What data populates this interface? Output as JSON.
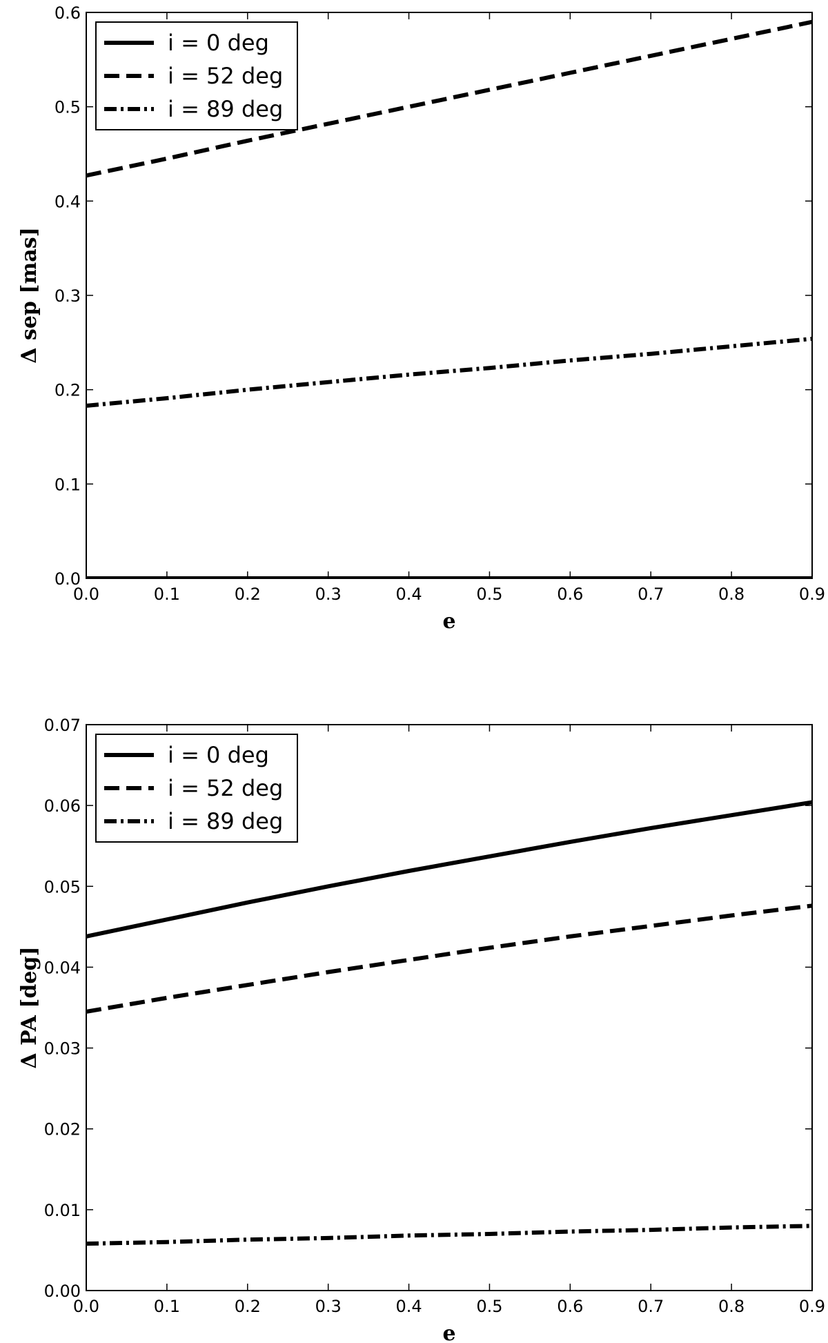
{
  "chart_data": [
    {
      "type": "line",
      "title": "",
      "xlabel": "e",
      "ylabel": "Δ sep [mas]",
      "xlim": [
        0.0,
        0.9
      ],
      "ylim": [
        0.0,
        0.6
      ],
      "xticks": [
        "0.0",
        "0.1",
        "0.2",
        "0.3",
        "0.4",
        "0.5",
        "0.6",
        "0.7",
        "0.8",
        "0.9"
      ],
      "yticks": [
        "0.0",
        "0.1",
        "0.2",
        "0.3",
        "0.4",
        "0.5",
        "0.6"
      ],
      "legend_position": "top-left",
      "grid": false,
      "series": [
        {
          "name": "i = 0 deg",
          "style": "solid",
          "x": [
            0.0,
            0.9
          ],
          "y": [
            0.0,
            0.0
          ]
        },
        {
          "name": "i = 52 deg",
          "style": "dashed",
          "x": [
            0.0,
            0.1,
            0.2,
            0.3,
            0.4,
            0.5,
            0.6,
            0.7,
            0.8,
            0.9
          ],
          "y": [
            0.427,
            0.445,
            0.464,
            0.482,
            0.5,
            0.518,
            0.536,
            0.554,
            0.572,
            0.59
          ]
        },
        {
          "name": "i = 89 deg",
          "style": "dashdot",
          "x": [
            0.0,
            0.1,
            0.2,
            0.3,
            0.4,
            0.5,
            0.6,
            0.7,
            0.8,
            0.9
          ],
          "y": [
            0.183,
            0.191,
            0.2,
            0.208,
            0.216,
            0.223,
            0.231,
            0.238,
            0.246,
            0.254
          ]
        }
      ]
    },
    {
      "type": "line",
      "title": "",
      "xlabel": "e",
      "ylabel": "Δ PA [deg]",
      "xlim": [
        0.0,
        0.9
      ],
      "ylim": [
        0.0,
        0.07
      ],
      "xticks": [
        "0.0",
        "0.1",
        "0.2",
        "0.3",
        "0.4",
        "0.5",
        "0.6",
        "0.7",
        "0.8",
        "0.9"
      ],
      "yticks": [
        "0.00",
        "0.01",
        "0.02",
        "0.03",
        "0.04",
        "0.05",
        "0.06",
        "0.07"
      ],
      "legend_position": "top-left",
      "grid": false,
      "series": [
        {
          "name": "i = 0 deg",
          "style": "solid",
          "x": [
            0.0,
            0.1,
            0.2,
            0.3,
            0.4,
            0.5,
            0.6,
            0.7,
            0.8,
            0.9
          ],
          "y": [
            0.0438,
            0.0459,
            0.048,
            0.05,
            0.0519,
            0.0537,
            0.0555,
            0.0572,
            0.0588,
            0.0604
          ]
        },
        {
          "name": "i = 52 deg",
          "style": "dashed",
          "x": [
            0.0,
            0.1,
            0.2,
            0.3,
            0.4,
            0.5,
            0.6,
            0.7,
            0.8,
            0.9
          ],
          "y": [
            0.0345,
            0.0362,
            0.0378,
            0.0394,
            0.0409,
            0.0424,
            0.0438,
            0.0451,
            0.0464,
            0.0476
          ]
        },
        {
          "name": "i = 89 deg",
          "style": "dashdot",
          "x": [
            0.0,
            0.1,
            0.2,
            0.3,
            0.4,
            0.5,
            0.6,
            0.7,
            0.8,
            0.9
          ],
          "y": [
            0.0058,
            0.006,
            0.0063,
            0.0065,
            0.0068,
            0.007,
            0.0073,
            0.0075,
            0.0078,
            0.008
          ]
        }
      ]
    }
  ]
}
